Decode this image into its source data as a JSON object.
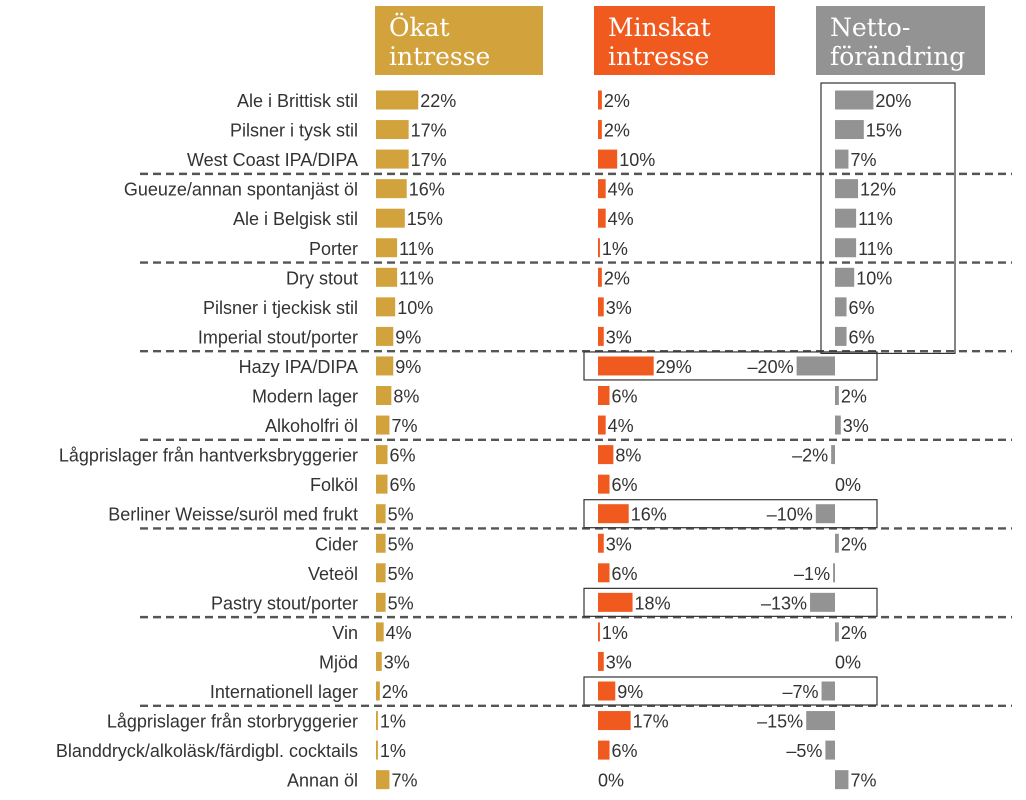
{
  "chart_data": {
    "type": "bar",
    "series": [
      {
        "name": "Ökat\nintresse",
        "color": "#d2a23c",
        "values": [
          22,
          17,
          17,
          16,
          15,
          11,
          11,
          10,
          9,
          9,
          8,
          7,
          6,
          6,
          5,
          5,
          5,
          5,
          4,
          3,
          2,
          1,
          1,
          7
        ]
      },
      {
        "name": "Minskat\nintresse",
        "color": "#f05a1e",
        "values": [
          2,
          2,
          10,
          4,
          4,
          1,
          2,
          3,
          3,
          29,
          6,
          4,
          8,
          6,
          16,
          3,
          6,
          18,
          1,
          3,
          9,
          17,
          6,
          0
        ]
      },
      {
        "name": "Netto-\nförändring",
        "color": "#939393",
        "values": [
          20,
          15,
          7,
          12,
          11,
          11,
          10,
          6,
          6,
          -20,
          2,
          3,
          -2,
          0,
          -10,
          2,
          -1,
          -13,
          2,
          0,
          -7,
          -15,
          -5,
          7
        ]
      }
    ],
    "categories": [
      "Ale i Brittisk stil",
      "Pilsner i tysk stil",
      "West Coast IPA/DIPA",
      "Gueuze/annan spontanjäst öl",
      "Ale i Belgisk stil",
      "Porter",
      "Dry stout",
      "Pilsner i tjeckisk stil",
      "Imperial stout/porter",
      "Hazy IPA/DIPA",
      "Modern lager",
      "Alkoholfri öl",
      "Lågprislager från hantverksbryggerier",
      "Folköl",
      "Berliner Weisse/suröl med frukt",
      "Cider",
      "Veteöl",
      "Pastry stout/porter",
      "Vin",
      "Mjöd",
      "Internationell lager",
      "Lågprislager från storbryggerier",
      "Blanddryck/alkoläsk/färdigbl. cocktails",
      "Annan öl"
    ],
    "labels": [
      [
        "22%",
        "2%",
        "20%"
      ],
      [
        "17%",
        "2%",
        "15%"
      ],
      [
        "17%",
        "10%",
        "7%"
      ],
      [
        "16%",
        "4%",
        "12%"
      ],
      [
        "15%",
        "4%",
        "11%"
      ],
      [
        "11%",
        "1%",
        "11%"
      ],
      [
        "11%",
        "2%",
        "10%"
      ],
      [
        "10%",
        "3%",
        "6%"
      ],
      [
        "9%",
        "3%",
        "6%"
      ],
      [
        "9%",
        "29%",
        "–20%"
      ],
      [
        "8%",
        "6%",
        "2%"
      ],
      [
        "7%",
        "4%",
        "3%"
      ],
      [
        "6%",
        "8%",
        "–2%"
      ],
      [
        "6%",
        "6%",
        "0%"
      ],
      [
        "5%",
        "16%",
        "–10%"
      ],
      [
        "5%",
        "3%",
        "2%"
      ],
      [
        "5%",
        "6%",
        "–1%"
      ],
      [
        "5%",
        "18%",
        "–13%"
      ],
      [
        "4%",
        "1%",
        "2%"
      ],
      [
        "3%",
        "3%",
        "0%"
      ],
      [
        "2%",
        "9%",
        "–7%"
      ],
      [
        "1%",
        "17%",
        "–15%"
      ],
      [
        "1%",
        "6%",
        "–5%"
      ],
      [
        "7%",
        "0%",
        "7%"
      ]
    ],
    "group_breaks_after": [
      2,
      5,
      8,
      11,
      14,
      17,
      20
    ],
    "highlight_positive_rows": [
      0,
      8
    ],
    "highlight_negative_rows": [
      9,
      14,
      17,
      20
    ],
    "legend": "top",
    "grid": false,
    "xlabel": "",
    "ylabel": ""
  }
}
